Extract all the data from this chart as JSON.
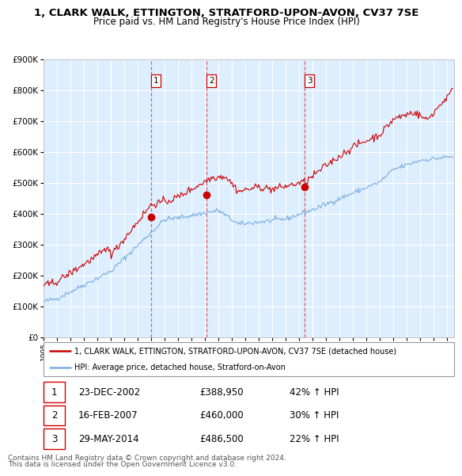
{
  "title": "1, CLARK WALK, ETTINGTON, STRATFORD-UPON-AVON, CV37 7SE",
  "subtitle": "Price paid vs. HM Land Registry's House Price Index (HPI)",
  "legend_line1": "1, CLARK WALK, ETTINGTON, STRATFORD-UPON-AVON, CV37 7SE (detached house)",
  "legend_line2": "HPI: Average price, detached house, Stratford-on-Avon",
  "footer_line1": "Contains HM Land Registry data © Crown copyright and database right 2024.",
  "footer_line2": "This data is licensed under the Open Government Licence v3.0.",
  "transactions": [
    {
      "num": 1,
      "date": "23-DEC-2002",
      "price": "£388,950",
      "hpi_pct": "42% ↑ HPI"
    },
    {
      "num": 2,
      "date": "16-FEB-2007",
      "price": "£460,000",
      "hpi_pct": "30% ↑ HPI"
    },
    {
      "num": 3,
      "date": "29-MAY-2014",
      "price": "£486,500",
      "hpi_pct": "22% ↑ HPI"
    }
  ],
  "transaction_dates_decimal": [
    2002.98,
    2007.12,
    2014.41
  ],
  "transaction_prices": [
    388950,
    460000,
    486500
  ],
  "ylim": [
    0,
    900000
  ],
  "xlim_start": 1995.0,
  "xlim_end": 2025.5,
  "red_color": "#cc0000",
  "blue_color": "#7aaddd",
  "vline_color": "#dd4444",
  "bg_color": "#ddeeff",
  "grid_color": "#ffffff",
  "box_label_color": "#cc0000"
}
